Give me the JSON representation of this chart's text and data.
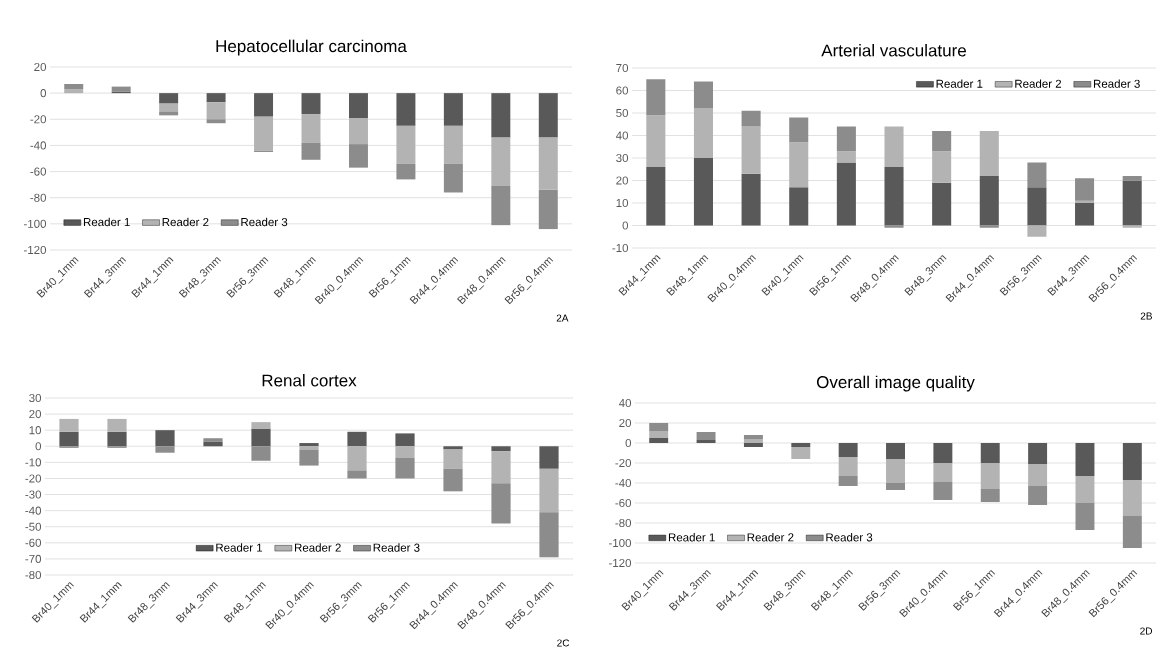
{
  "chart_data": [
    {
      "type": "bar",
      "title": "Hepatocellular carcinoma",
      "stacked": true,
      "grid": "y",
      "legend": "bottom left",
      "categories": [
        "Br40_1mm",
        "Br44_3mm",
        "Br44_1mm",
        "Br48_3mm",
        "Br56_3mm",
        "Br48_1mm",
        "Br40_0.4mm",
        "Br56_1mm",
        "Br44_0.4mm",
        "Br48_0.4mm",
        "Br56_0.4mm"
      ],
      "series": [
        {
          "name": "Reader 1",
          "color": "#595959",
          "values": [
            0,
            1,
            -8,
            -7,
            -18,
            -16,
            -19,
            -25,
            -25,
            -34,
            -34
          ]
        },
        {
          "name": "Reader 2",
          "color": "#b3b3b3",
          "values": [
            3,
            0,
            -6,
            -13,
            -26,
            -22,
            -20,
            -29,
            -29,
            -37,
            -40
          ]
        },
        {
          "name": "Reader 3",
          "color": "#8c8c8c",
          "values": [
            4,
            4,
            -3,
            -3,
            -1,
            -13,
            -18,
            -12,
            -22,
            -30,
            -30
          ]
        }
      ],
      "ylim": [
        -120,
        20
      ],
      "yticks": [
        -120,
        -100,
        -80,
        -60,
        -40,
        -20,
        0,
        20
      ],
      "annotations": [
        "2A"
      ]
    },
    {
      "type": "bar",
      "title": "Arterial vasculature",
      "stacked": true,
      "grid": "y",
      "legend": "top right",
      "categories": [
        "Br44_1mm",
        "Br48_1mm",
        "Br40_0.4mm",
        "Br40_1mm",
        "Br56_1mm",
        "Br48_0.4mm",
        "Br48_3mm",
        "Br44_0.4mm",
        "Br56_3mm",
        "Br44_3mm",
        "Br56_0.4mm"
      ],
      "series": [
        {
          "name": "Reader 1",
          "color": "#595959",
          "values": [
            26,
            30,
            23,
            17,
            28,
            26,
            19,
            22,
            17,
            10,
            20
          ]
        },
        {
          "name": "Reader 2",
          "color": "#b3b3b3",
          "values": [
            23,
            22,
            21,
            20,
            5,
            18,
            14,
            20,
            -5,
            1,
            -1
          ]
        },
        {
          "name": "Reader 3",
          "color": "#8c8c8c",
          "values": [
            16,
            12,
            7,
            11,
            11,
            -1,
            9,
            -1,
            11,
            10,
            2
          ]
        }
      ],
      "ylim": [
        -10,
        70
      ],
      "yticks": [
        -10,
        0,
        10,
        20,
        30,
        40,
        50,
        60,
        70
      ],
      "annotations": [
        "2B"
      ]
    },
    {
      "type": "bar",
      "title": "Renal cortex",
      "stacked": true,
      "grid": "y",
      "legend": "bottom",
      "categories": [
        "Br40_1mm",
        "Br44_1mm",
        "Br48_3mm",
        "Br44_3mm",
        "Br48_1mm",
        "Br40_0.4mm",
        "Br56_3mm",
        "Br56_1mm",
        "Br44_0.4mm",
        "Br48_0.4mm",
        "Br56_0.4mm"
      ],
      "series": [
        {
          "name": "Reader 1",
          "color": "#595959",
          "values": [
            9,
            9,
            10,
            3,
            11,
            2,
            9,
            8,
            -2,
            -3,
            -14
          ]
        },
        {
          "name": "Reader 2",
          "color": "#b3b3b3",
          "values": [
            8,
            8,
            null,
            null,
            4,
            -2,
            -15,
            -7,
            -12,
            -20,
            -27
          ]
        },
        {
          "name": "Reader 3",
          "color": "#8c8c8c",
          "values": [
            -1,
            -1,
            -4,
            2,
            -9,
            -10,
            -5,
            -13,
            -14,
            -25,
            -28
          ]
        }
      ],
      "ylim": [
        -80,
        30
      ],
      "yticks": [
        -80,
        -70,
        -60,
        -50,
        -40,
        -30,
        -20,
        -10,
        0,
        10,
        20,
        30
      ],
      "annotations": [
        "2C"
      ]
    },
    {
      "type": "bar",
      "title": "Overall image quality",
      "stacked": true,
      "grid": "y",
      "legend": "bottom left",
      "categories": [
        "Br40_1mm",
        "Br44_3mm",
        "Br44_1mm",
        "Br48_3mm",
        "Br48_1mm",
        "Br56_3mm",
        "Br40_0.4mm",
        "Br56_1mm",
        "Br44_0.4mm",
        "Br48_0.4mm",
        "Br56_0.4mm"
      ],
      "series": [
        {
          "name": "Reader 1",
          "color": "#595959",
          "values": [
            5,
            3,
            -4,
            -4,
            -14,
            -16,
            -20,
            -20,
            -21,
            -33,
            -37
          ]
        },
        {
          "name": "Reader 2",
          "color": "#b3b3b3",
          "values": [
            7,
            null,
            4,
            -12,
            -19,
            -24,
            -19,
            -26,
            -22,
            -27,
            -36
          ]
        },
        {
          "name": "Reader 3",
          "color": "#8c8c8c",
          "values": [
            8,
            8,
            4,
            0,
            -10,
            -7,
            -18,
            -13,
            -19,
            -27,
            -32
          ]
        }
      ],
      "ylim": [
        -120,
        40
      ],
      "yticks": [
        -120,
        -100,
        -80,
        -60,
        -40,
        -20,
        0,
        20,
        40
      ],
      "annotations": [
        "2D"
      ]
    }
  ]
}
